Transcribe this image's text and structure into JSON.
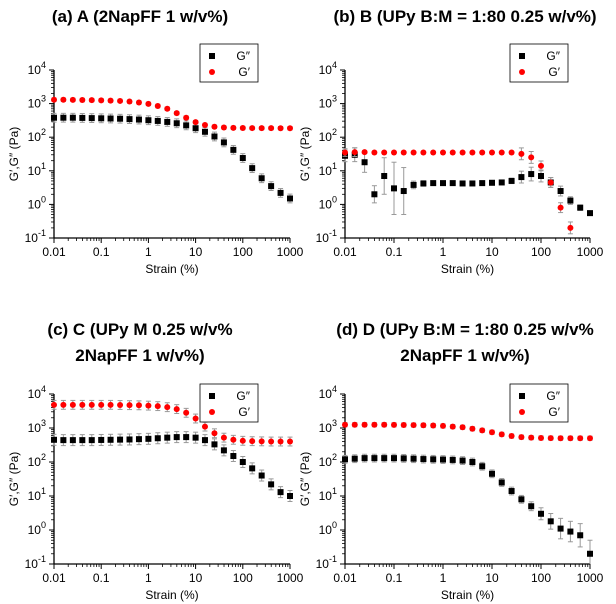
{
  "chart_data": [
    {
      "type": "scatter",
      "panel": "(a)",
      "title_lines": [
        "(a) A (2NapFF 1 w/v%)"
      ],
      "xlabel": "Strain (%)",
      "ylabel": "G′,G″ (Pa)",
      "x_scale": "log",
      "y_scale": "log",
      "xlim": [
        0.01,
        1000
      ],
      "ylim": [
        0.1,
        10000
      ],
      "x_ticks": [
        "0.01",
        "0.1",
        "1",
        "10",
        "100",
        "1000"
      ],
      "y_ticks": [
        {
          "base": "10",
          "exp": "-1"
        },
        {
          "base": "10",
          "exp": "0"
        },
        {
          "base": "10",
          "exp": "1"
        },
        {
          "base": "10",
          "exp": "2"
        },
        {
          "base": "10",
          "exp": "3"
        },
        {
          "base": "10",
          "exp": "4"
        }
      ],
      "legend_position": "top-right",
      "series": [
        {
          "name": "G″",
          "marker": "square",
          "color": "#000000",
          "x": [
            0.01,
            0.0158,
            0.0251,
            0.0398,
            0.0631,
            0.1,
            0.158,
            0.251,
            0.398,
            0.631,
            1,
            1.58,
            2.51,
            3.98,
            6.31,
            10,
            15.8,
            25.1,
            39.8,
            63.1,
            100,
            158,
            251,
            398,
            631,
            1000
          ],
          "values": [
            380,
            380,
            380,
            375,
            370,
            365,
            360,
            355,
            345,
            335,
            320,
            305,
            285,
            260,
            225,
            185,
            145,
            105,
            70,
            42,
            24,
            12,
            6,
            3.5,
            2.2,
            1.5
          ],
          "err_factor": 1.35
        },
        {
          "name": "G′",
          "marker": "circle",
          "color": "#ff0000",
          "x": [
            0.01,
            0.0158,
            0.0251,
            0.0398,
            0.0631,
            0.1,
            0.158,
            0.251,
            0.398,
            0.631,
            1,
            1.58,
            2.51,
            3.98,
            6.31,
            10,
            15.8,
            25.1,
            39.8,
            63.1,
            100,
            158,
            251,
            398,
            631,
            1000
          ],
          "values": [
            1300,
            1300,
            1290,
            1280,
            1270,
            1250,
            1230,
            1200,
            1150,
            1080,
            980,
            850,
            700,
            520,
            380,
            280,
            230,
            205,
            195,
            190,
            188,
            187,
            186,
            186,
            185,
            185
          ],
          "err_factor": 1.12
        }
      ]
    },
    {
      "type": "scatter",
      "panel": "(b)",
      "title_lines": [
        "(b) B (UPy B:M = 1:80 0.25 w/v%)"
      ],
      "xlabel": "Strain (%)",
      "ylabel": "G′,G″ (Pa)",
      "x_scale": "log",
      "y_scale": "log",
      "xlim": [
        0.01,
        1000
      ],
      "ylim": [
        0.1,
        10000
      ],
      "x_ticks": [
        "0.01",
        "0.1",
        "1",
        "10",
        "100",
        "1000"
      ],
      "y_ticks": [
        {
          "base": "10",
          "exp": "-1"
        },
        {
          "base": "10",
          "exp": "0"
        },
        {
          "base": "10",
          "exp": "1"
        },
        {
          "base": "10",
          "exp": "2"
        },
        {
          "base": "10",
          "exp": "3"
        },
        {
          "base": "10",
          "exp": "4"
        }
      ],
      "legend_position": "top-right",
      "series": [
        {
          "name": "G″",
          "marker": "square",
          "color": "#000000",
          "x": [
            0.01,
            0.0158,
            0.0251,
            0.0398,
            0.0631,
            0.1,
            0.158,
            0.251,
            0.398,
            0.631,
            1,
            1.58,
            2.51,
            3.98,
            6.31,
            10,
            15.8,
            25.1,
            39.8,
            63.1,
            100,
            158,
            251,
            398,
            631,
            1000
          ],
          "values": [
            28,
            30,
            18,
            2.0,
            7.0,
            3.0,
            2.5,
            3.8,
            4.2,
            4.3,
            4.3,
            4.3,
            4.2,
            4.2,
            4.3,
            4.4,
            4.5,
            5.0,
            6.5,
            8.0,
            7.0,
            4.5,
            2.5,
            1.3,
            0.8,
            0.55
          ],
          "err_factor": [
            1.5,
            1.6,
            2.0,
            1.8,
            3.5,
            6.0,
            5.0,
            1.3,
            1.2,
            1.15,
            1.12,
            1.12,
            1.12,
            1.12,
            1.12,
            1.12,
            1.15,
            1.2,
            1.5,
            1.6,
            1.5,
            1.4,
            1.4,
            1.3,
            1.2,
            1.15
          ]
        },
        {
          "name": "G′",
          "marker": "circle",
          "color": "#ff0000",
          "x": [
            0.01,
            0.0158,
            0.0251,
            0.0398,
            0.0631,
            0.1,
            0.158,
            0.251,
            0.398,
            0.631,
            1,
            1.58,
            2.51,
            3.98,
            6.31,
            10,
            15.8,
            25.1,
            39.8,
            63.1,
            100,
            158,
            251,
            398
          ],
          "values": [
            35,
            36,
            36,
            35,
            35,
            35,
            35,
            35,
            35,
            35,
            35,
            35,
            35,
            35,
            35,
            35,
            35,
            35,
            32,
            25,
            14,
            4.5,
            0.8,
            0.2
          ],
          "err_factor": [
            1.3,
            1.35,
            1.1,
            1.08,
            1.08,
            1.08,
            1.08,
            1.08,
            1.08,
            1.08,
            1.08,
            1.08,
            1.08,
            1.08,
            1.08,
            1.08,
            1.08,
            1.1,
            1.5,
            1.5,
            1.4,
            1.4,
            1.4,
            1.5
          ]
        }
      ]
    },
    {
      "type": "scatter",
      "panel": "(c)",
      "title_lines": [
        "(c) C (UPy M 0.25 w/v%",
        "2NapFF 1 w/v%)"
      ],
      "xlabel": "Strain (%)",
      "ylabel": "G′,G″ (Pa)",
      "x_scale": "log",
      "y_scale": "log",
      "xlim": [
        0.01,
        1000
      ],
      "ylim": [
        0.1,
        10000
      ],
      "x_ticks": [
        "0.01",
        "0.1",
        "1",
        "10",
        "100",
        "1000"
      ],
      "y_ticks": [
        {
          "base": "10",
          "exp": "-1"
        },
        {
          "base": "10",
          "exp": "0"
        },
        {
          "base": "10",
          "exp": "1"
        },
        {
          "base": "10",
          "exp": "2"
        },
        {
          "base": "10",
          "exp": "3"
        },
        {
          "base": "10",
          "exp": "4"
        }
      ],
      "legend_position": "top-right",
      "series": [
        {
          "name": "G″",
          "marker": "square",
          "color": "#000000",
          "x": [
            0.01,
            0.0158,
            0.0251,
            0.0398,
            0.0631,
            0.1,
            0.158,
            0.251,
            0.398,
            0.631,
            1,
            1.58,
            2.51,
            3.98,
            6.31,
            10,
            15.8,
            25.1,
            39.8,
            63.1,
            100,
            158,
            251,
            398,
            631,
            1000
          ],
          "values": [
            450,
            440,
            440,
            440,
            440,
            445,
            450,
            455,
            460,
            470,
            480,
            500,
            520,
            540,
            540,
            520,
            440,
            330,
            220,
            150,
            100,
            65,
            40,
            22,
            13,
            10
          ],
          "err_factor": 1.45
        },
        {
          "name": "G′",
          "marker": "circle",
          "color": "#ff0000",
          "x": [
            0.01,
            0.0158,
            0.0251,
            0.0398,
            0.0631,
            0.1,
            0.158,
            0.251,
            0.398,
            0.631,
            1,
            1.58,
            2.51,
            3.98,
            6.31,
            10,
            15.8,
            25.1,
            39.8,
            63.1,
            100,
            158,
            251,
            398,
            631,
            1000
          ],
          "values": [
            4800,
            4800,
            4800,
            4800,
            4800,
            4800,
            4800,
            4750,
            4700,
            4650,
            4550,
            4400,
            4100,
            3600,
            2800,
            1900,
            1100,
            700,
            520,
            450,
            420,
            410,
            405,
            400,
            400,
            400
          ],
          "err_factor": 1.35
        }
      ]
    },
    {
      "type": "scatter",
      "panel": "(d)",
      "title_lines": [
        "(d) D (UPy B:M = 1:80 0.25 w/v%",
        "2NapFF 1 w/v%)"
      ],
      "xlabel": "Strain (%)",
      "ylabel": "G′,G″ (Pa)",
      "x_scale": "log",
      "y_scale": "log",
      "xlim": [
        0.01,
        1000
      ],
      "ylim": [
        0.1,
        10000
      ],
      "x_ticks": [
        "0.01",
        "0.1",
        "1",
        "10",
        "100",
        "1000"
      ],
      "y_ticks": [
        {
          "base": "10",
          "exp": "-1"
        },
        {
          "base": "10",
          "exp": "0"
        },
        {
          "base": "10",
          "exp": "1"
        },
        {
          "base": "10",
          "exp": "2"
        },
        {
          "base": "10",
          "exp": "3"
        },
        {
          "base": "10",
          "exp": "4"
        }
      ],
      "legend_position": "top-right",
      "series": [
        {
          "name": "G″",
          "marker": "square",
          "color": "#000000",
          "x": [
            0.01,
            0.0158,
            0.0251,
            0.0398,
            0.0631,
            0.1,
            0.158,
            0.251,
            0.398,
            0.631,
            1,
            1.58,
            2.51,
            3.98,
            6.31,
            10,
            15.8,
            25.1,
            39.8,
            63.1,
            100,
            158,
            251,
            398,
            631,
            1000
          ],
          "values": [
            120,
            125,
            130,
            130,
            130,
            130,
            128,
            125,
            122,
            120,
            118,
            115,
            110,
            100,
            75,
            45,
            25,
            14,
            8,
            5,
            3,
            1.8,
            1.1,
            0.9,
            0.7,
            0.2
          ],
          "err_factor": [
            1.3,
            1.3,
            1.3,
            1.3,
            1.3,
            1.3,
            1.3,
            1.3,
            1.3,
            1.3,
            1.3,
            1.3,
            1.3,
            1.3,
            1.3,
            1.3,
            1.3,
            1.3,
            1.3,
            1.35,
            1.5,
            1.7,
            2.0,
            2.0,
            2.2,
            2.5
          ]
        },
        {
          "name": "G′",
          "marker": "circle",
          "color": "#ff0000",
          "x": [
            0.01,
            0.0158,
            0.0251,
            0.0398,
            0.0631,
            0.1,
            0.158,
            0.251,
            0.398,
            0.631,
            1,
            1.58,
            2.51,
            3.98,
            6.31,
            10,
            15.8,
            25.1,
            39.8,
            63.1,
            100,
            158,
            251,
            398,
            631,
            1000
          ],
          "values": [
            1250,
            1250,
            1250,
            1250,
            1250,
            1240,
            1230,
            1220,
            1200,
            1180,
            1150,
            1100,
            1050,
            950,
            850,
            750,
            650,
            580,
            540,
            520,
            510,
            505,
            500,
            500,
            500,
            500
          ],
          "err_factor": 1.15
        }
      ]
    }
  ]
}
